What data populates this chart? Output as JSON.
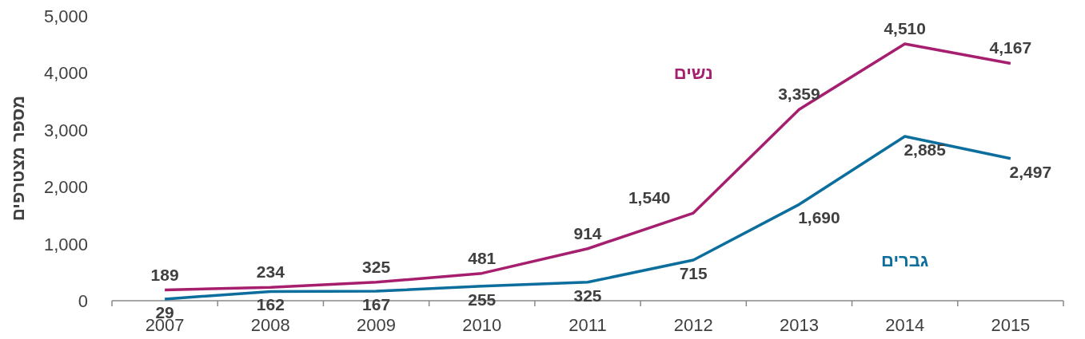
{
  "chart_data": {
    "type": "line",
    "ylabel": "מספר מצטרפים",
    "categories": [
      "2007",
      "2008",
      "2009",
      "2010",
      "2011",
      "2012",
      "2013",
      "2014",
      "2015"
    ],
    "series": [
      {
        "name": "נשים",
        "color": "#a61e6e",
        "values": [
          189,
          234,
          325,
          481,
          914,
          1540,
          3359,
          4510,
          4167
        ],
        "value_labels": [
          "189",
          "234",
          "325",
          "481",
          "914",
          "1,540",
          "3,359",
          "4,510",
          "4,167"
        ]
      },
      {
        "name": "גברים",
        "color": "#0b6e9c",
        "values": [
          29,
          162,
          167,
          255,
          325,
          715,
          1690,
          2885,
          2497
        ],
        "value_labels": [
          "29",
          "162",
          "167",
          "255",
          "325",
          "715",
          "1,690",
          "2,885",
          "2,497"
        ]
      }
    ],
    "ylim": [
      0,
      5000
    ],
    "yticks": [
      {
        "value": 0,
        "label": "0"
      },
      {
        "value": 1000,
        "label": "1,000"
      },
      {
        "value": 2000,
        "label": "2,000"
      },
      {
        "value": 3000,
        "label": "3,000"
      },
      {
        "value": 4000,
        "label": "4,000"
      },
      {
        "value": 5000,
        "label": "5,000"
      }
    ],
    "grid": false,
    "marker": "none",
    "line_style": "solid"
  }
}
